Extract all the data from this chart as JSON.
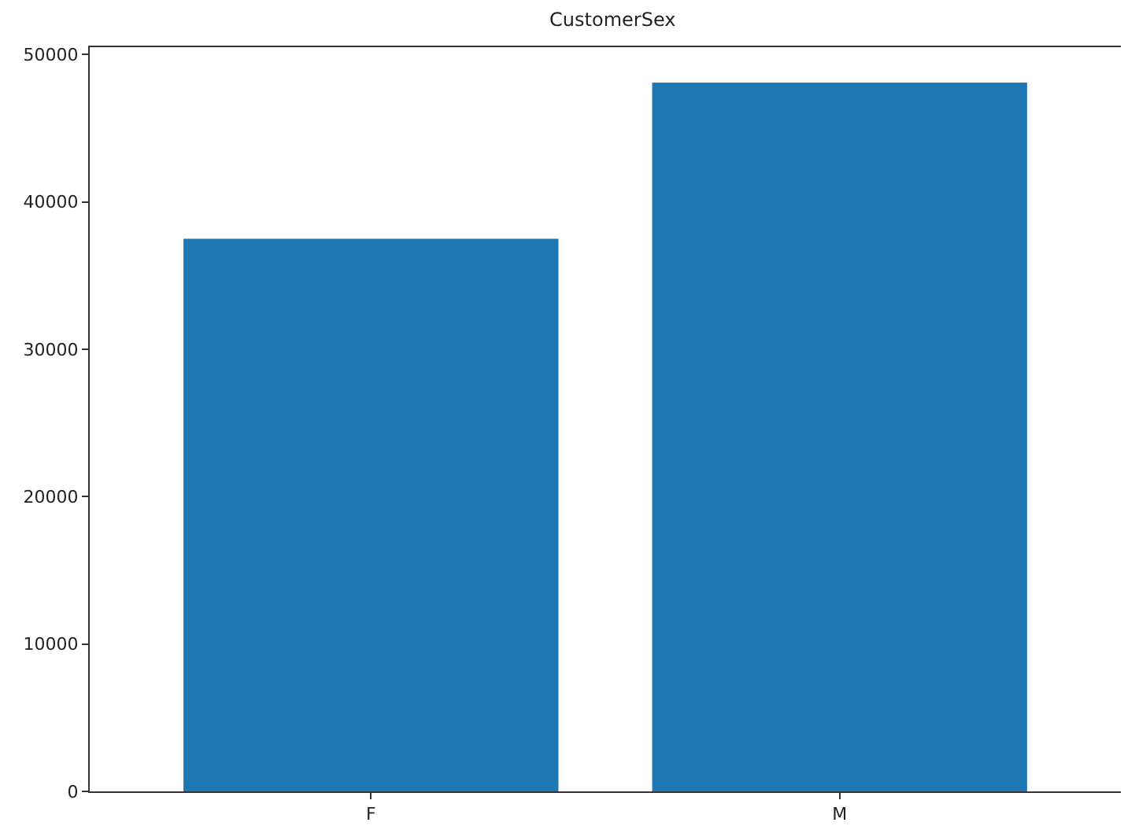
{
  "chart_data": {
    "type": "bar",
    "title": "CustomerSex",
    "categories": [
      "F",
      "M"
    ],
    "values": [
      37500,
      48100
    ],
    "color": "#1f77b4",
    "ylim": [
      0,
      50500
    ],
    "yticks": [
      0,
      10000,
      20000,
      30000,
      40000,
      50000
    ],
    "grid": false
  }
}
